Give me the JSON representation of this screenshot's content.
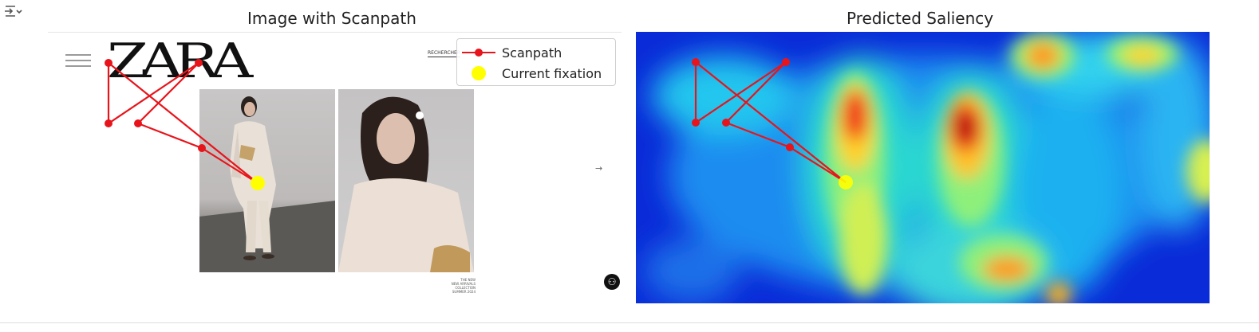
{
  "panels": {
    "left_title": "Image with Scanpath",
    "right_title": "Predicted Saliency"
  },
  "legend": {
    "scanpath_label": "Scanpath",
    "fixation_label": "Current fixation"
  },
  "webpage": {
    "logo": "ZARA",
    "search_text": "RECHERCHER",
    "caption_line1": "THE NEW",
    "caption_line2": "NEW ARRIVALS COLLECTION",
    "caption_line3": "SUMMER 2024"
  },
  "colors": {
    "scanpath": "#e8141b",
    "fixation": "#ffff00"
  },
  "icons": {
    "output": "output-collapse-icon",
    "accessibility": "accessibility-icon",
    "next": "arrow-right-icon"
  }
}
